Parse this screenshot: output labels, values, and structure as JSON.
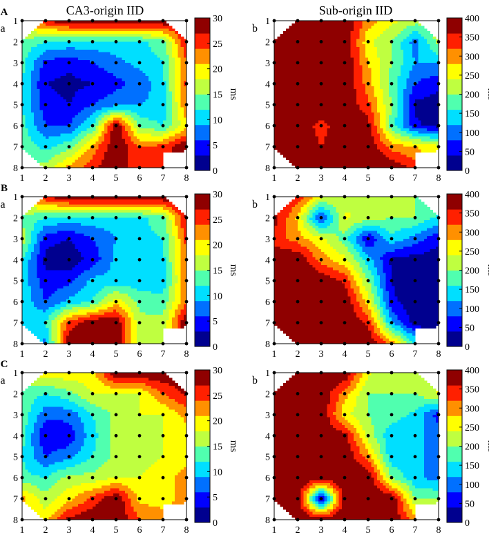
{
  "titles": {
    "left": "CA3-origin IID",
    "right": "Sub-origin IID"
  },
  "row_labels": [
    "A",
    "B",
    "C"
  ],
  "panel_labels": {
    "left": "a",
    "right": "b"
  },
  "colormap": [
    "#00008f",
    "#0000ff",
    "#0070ff",
    "#00dfff",
    "#50ffaf",
    "#bfff40",
    "#ffff00",
    "#ff9000",
    "#ff2000",
    "#8f0000"
  ],
  "chart_data": [
    {
      "type": "heatmap",
      "row": "A",
      "panel": "a",
      "x_ticks": [
        "1",
        "2",
        "3",
        "4",
        "5",
        "6",
        "7",
        "8"
      ],
      "y_ticks": [
        "1",
        "2",
        "3",
        "4",
        "5",
        "6",
        "7",
        "8"
      ],
      "colorbar_ticks": [
        "0",
        "5",
        "10",
        "15",
        "20",
        "25",
        "30"
      ],
      "colorbar_label": "ms",
      "vmin": 0,
      "vmax": 30,
      "values": [
        [
          null,
          27,
          30,
          30,
          30,
          30,
          30,
          null
        ],
        [
          14,
          12,
          11,
          11,
          11,
          11,
          14,
          27
        ],
        [
          13,
          5,
          4,
          6,
          8,
          10,
          12,
          24
        ],
        [
          12,
          3,
          2,
          3,
          5,
          7,
          11,
          25
        ],
        [
          12,
          4,
          3,
          6,
          8,
          9,
          10,
          24
        ],
        [
          13,
          6,
          6,
          12,
          30,
          14,
          12,
          20
        ],
        [
          14,
          11,
          14,
          22,
          30,
          24,
          25,
          30
        ],
        [
          null,
          16,
          22,
          26,
          30,
          24,
          null,
          null
        ]
      ]
    },
    {
      "type": "heatmap",
      "row": "A",
      "panel": "b",
      "x_ticks": [
        "1",
        "2",
        "3",
        "4",
        "5",
        "6",
        "7",
        "8"
      ],
      "y_ticks": [
        "1",
        "2",
        "3",
        "4",
        "5",
        "6",
        "7",
        "8"
      ],
      "colorbar_ticks": [
        "0",
        "50",
        "100",
        "150",
        "200",
        "250",
        "300",
        "350",
        "400"
      ],
      "colorbar_label": "ms",
      "vmin": 0,
      "vmax": 400,
      "values": [
        [
          null,
          400,
          400,
          400,
          300,
          250,
          220,
          null
        ],
        [
          400,
          400,
          400,
          400,
          250,
          200,
          100,
          220
        ],
        [
          400,
          400,
          400,
          400,
          280,
          200,
          120,
          120
        ],
        [
          400,
          400,
          400,
          400,
          300,
          180,
          80,
          50
        ],
        [
          400,
          400,
          400,
          400,
          330,
          200,
          30,
          20
        ],
        [
          400,
          400,
          340,
          400,
          380,
          180,
          50,
          20
        ],
        [
          400,
          400,
          360,
          400,
          400,
          300,
          280,
          250
        ],
        [
          null,
          400,
          400,
          400,
          400,
          400,
          null,
          null
        ]
      ]
    },
    {
      "type": "heatmap",
      "row": "B",
      "panel": "a",
      "x_ticks": [
        "1",
        "2",
        "3",
        "4",
        "5",
        "6",
        "7",
        "8"
      ],
      "y_ticks": [
        "1",
        "2",
        "3",
        "4",
        "5",
        "6",
        "7",
        "8"
      ],
      "colorbar_ticks": [
        "0",
        "5",
        "10",
        "15",
        "20",
        "25",
        "30"
      ],
      "colorbar_label": "ms",
      "vmin": 0,
      "vmax": 30,
      "values": [
        [
          null,
          27,
          30,
          30,
          30,
          30,
          30,
          null
        ],
        [
          14,
          12,
          11,
          11,
          11,
          11,
          14,
          28
        ],
        [
          17,
          4,
          3,
          6,
          9,
          11,
          12,
          25
        ],
        [
          12,
          2,
          1,
          4,
          10,
          10,
          11,
          24
        ],
        [
          11,
          4,
          5,
          10,
          10,
          10,
          10,
          24
        ],
        [
          11,
          6,
          10,
          12,
          20,
          14,
          13,
          24
        ],
        [
          12,
          12,
          25,
          30,
          30,
          16,
          16,
          30
        ],
        [
          null,
          8,
          30,
          30,
          30,
          16,
          null,
          null
        ]
      ]
    },
    {
      "type": "heatmap",
      "row": "B",
      "panel": "b",
      "x_ticks": [
        "1",
        "2",
        "3",
        "4",
        "5",
        "6",
        "7",
        "8"
      ],
      "y_ticks": [
        "1",
        "2",
        "3",
        "4",
        "5",
        "6",
        "7",
        "8"
      ],
      "colorbar_ticks": [
        "0",
        "50",
        "100",
        "150",
        "200",
        "250",
        "300",
        "350",
        "400"
      ],
      "colorbar_label": "ms",
      "vmin": 0,
      "vmax": 400,
      "values": [
        [
          null,
          350,
          250,
          220,
          230,
          220,
          200,
          null
        ],
        [
          380,
          270,
          60,
          250,
          220,
          200,
          200,
          150
        ],
        [
          340,
          300,
          250,
          180,
          40,
          150,
          100,
          50
        ],
        [
          400,
          400,
          300,
          250,
          140,
          30,
          20,
          20
        ],
        [
          400,
          400,
          400,
          350,
          200,
          40,
          10,
          10
        ],
        [
          400,
          400,
          400,
          400,
          260,
          50,
          10,
          10
        ],
        [
          400,
          400,
          400,
          400,
          350,
          120,
          20,
          20
        ],
        [
          null,
          400,
          400,
          400,
          400,
          300,
          null,
          null
        ]
      ]
    },
    {
      "type": "heatmap",
      "row": "C",
      "panel": "a",
      "x_ticks": [
        "1",
        "2",
        "3",
        "4",
        "5",
        "6",
        "7",
        "8"
      ],
      "y_ticks": [
        "1",
        "2",
        "3",
        "4",
        "5",
        "6",
        "7",
        "8"
      ],
      "colorbar_ticks": [
        "0",
        "5",
        "10",
        "15",
        "20",
        "25",
        "30"
      ],
      "colorbar_label": "ms",
      "vmin": 0,
      "vmax": 30,
      "values": [
        [
          null,
          20,
          20,
          20,
          30,
          30,
          30,
          null
        ],
        [
          14,
          12,
          14,
          18,
          18,
          18,
          24,
          28
        ],
        [
          14,
          7,
          7,
          12,
          16,
          18,
          18,
          22
        ],
        [
          13,
          3,
          4,
          11,
          16,
          16,
          18,
          20
        ],
        [
          12,
          6,
          8,
          12,
          16,
          16,
          18,
          20
        ],
        [
          13,
          12,
          16,
          16,
          18,
          18,
          20,
          22
        ],
        [
          22,
          16,
          20,
          25,
          30,
          20,
          20,
          22
        ],
        [
          null,
          20,
          28,
          30,
          30,
          24,
          null,
          null
        ]
      ]
    },
    {
      "type": "heatmap",
      "row": "C",
      "panel": "b",
      "x_ticks": [
        "1",
        "2",
        "3",
        "4",
        "5",
        "6",
        "7",
        "8"
      ],
      "y_ticks": [
        "1",
        "2",
        "3",
        "4",
        "5",
        "6",
        "7",
        "8"
      ],
      "colorbar_ticks": [
        "0",
        "50",
        "100",
        "150",
        "200",
        "250",
        "300",
        "350",
        "400"
      ],
      "colorbar_label": "ms",
      "vmin": 0,
      "vmax": 400,
      "values": [
        [
          null,
          400,
          400,
          400,
          250,
          200,
          200,
          null
        ],
        [
          400,
          400,
          400,
          300,
          200,
          200,
          200,
          250
        ],
        [
          400,
          400,
          400,
          250,
          200,
          180,
          150,
          60
        ],
        [
          400,
          400,
          400,
          380,
          220,
          130,
          130,
          100
        ],
        [
          400,
          400,
          400,
          400,
          300,
          130,
          130,
          100
        ],
        [
          400,
          400,
          400,
          400,
          400,
          200,
          130,
          100
        ],
        [
          400,
          400,
          20,
          400,
          400,
          400,
          200,
          200
        ],
        [
          null,
          400,
          400,
          400,
          400,
          400,
          null,
          null
        ]
      ]
    }
  ]
}
